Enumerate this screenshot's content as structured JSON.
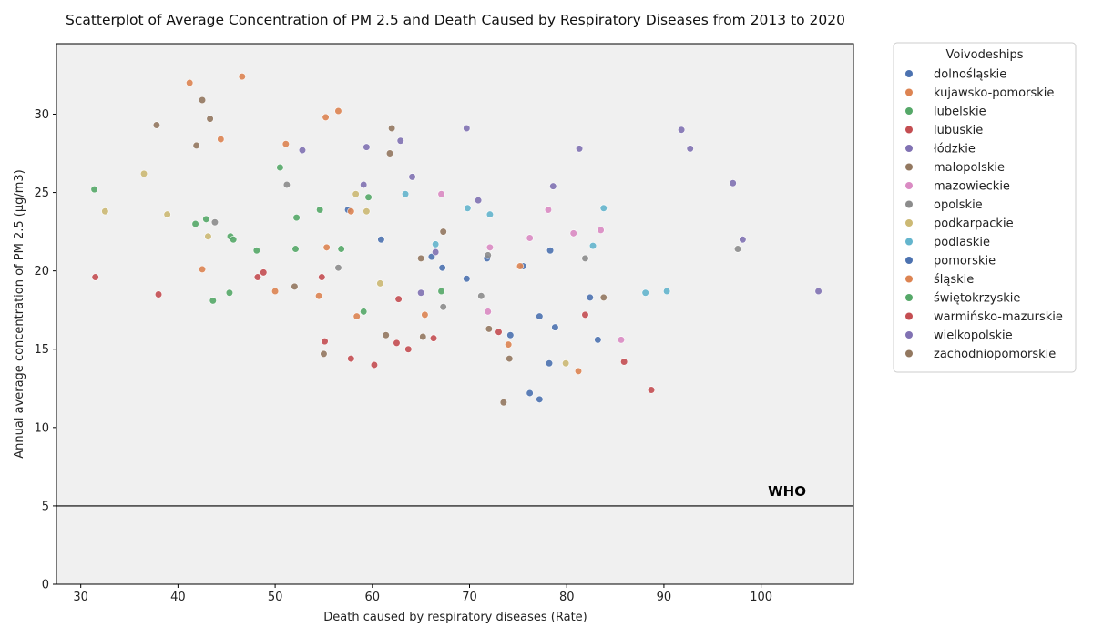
{
  "chart_data": {
    "type": "scatter",
    "title": "Scatterplot of Average Concentration of PM 2.5 and Death Caused by Respiratory Diseases from 2013 to 2020",
    "xlabel": "Death caused by respiratory diseases (Rate)",
    "ylabel": "Annual average concentration of PM 2.5 (µg/m3)",
    "xlim": [
      27.5,
      109.5
    ],
    "ylim": [
      0,
      34.5
    ],
    "xticks": [
      30,
      40,
      50,
      60,
      70,
      80,
      90,
      100
    ],
    "yticks": [
      0,
      5,
      10,
      15,
      20,
      25,
      30
    ],
    "grid": false,
    "background": "#f0f0f0",
    "legend": {
      "title": "Voivodeships",
      "placement": "outside-right"
    },
    "reference_line": {
      "y": 5,
      "label": "WHO",
      "color": "#000000"
    },
    "series": [
      {
        "name": "dolnośląskie",
        "color": "#4c72b0",
        "points": [
          [
            60.9,
            22.0
          ],
          [
            66.1,
            20.9
          ],
          [
            67.2,
            20.2
          ],
          [
            69.7,
            19.5
          ],
          [
            71.8,
            20.8
          ],
          [
            74.2,
            15.9
          ],
          [
            76.2,
            12.2
          ],
          [
            77.2,
            11.8
          ]
        ]
      },
      {
        "name": "kujawsko-pomorskie",
        "color": "#dd8452",
        "points": [
          [
            41.2,
            32.0
          ],
          [
            46.6,
            32.4
          ],
          [
            44.4,
            28.4
          ],
          [
            51.1,
            28.1
          ],
          [
            55.2,
            29.8
          ],
          [
            56.5,
            30.2
          ],
          [
            42.5,
            20.1
          ],
          [
            50.0,
            18.7
          ]
        ]
      },
      {
        "name": "lubelskie",
        "color": "#55a868",
        "points": [
          [
            31.4,
            25.2
          ],
          [
            41.8,
            23.0
          ],
          [
            42.9,
            23.3
          ],
          [
            45.4,
            22.2
          ],
          [
            45.7,
            22.0
          ],
          [
            48.1,
            21.3
          ],
          [
            43.6,
            18.1
          ],
          [
            45.3,
            18.6
          ]
        ]
      },
      {
        "name": "lubuskie",
        "color": "#c44e52",
        "points": [
          [
            31.5,
            19.6
          ],
          [
            38.0,
            18.5
          ],
          [
            48.2,
            19.6
          ],
          [
            48.8,
            19.9
          ],
          [
            54.8,
            19.6
          ],
          [
            55.1,
            15.5
          ],
          [
            57.8,
            14.4
          ],
          [
            60.2,
            14.0
          ]
        ]
      },
      {
        "name": "łódzkie",
        "color": "#8172b3",
        "points": [
          [
            52.8,
            27.7
          ],
          [
            59.4,
            27.9
          ],
          [
            62.9,
            28.3
          ],
          [
            64.1,
            26.0
          ],
          [
            69.7,
            29.1
          ],
          [
            81.3,
            27.8
          ],
          [
            91.8,
            29.0
          ],
          [
            92.7,
            27.8
          ]
        ]
      },
      {
        "name": "małopolskie",
        "color": "#937860",
        "points": [
          [
            37.8,
            29.3
          ],
          [
            42.5,
            30.9
          ],
          [
            43.3,
            29.7
          ],
          [
            41.9,
            28.0
          ],
          [
            62.0,
            29.1
          ],
          [
            61.8,
            27.5
          ],
          [
            67.3,
            22.5
          ],
          [
            65.0,
            20.8
          ]
        ]
      },
      {
        "name": "mazowieckie",
        "color": "#da8bc3",
        "points": [
          [
            67.1,
            24.9
          ],
          [
            72.1,
            21.5
          ],
          [
            76.2,
            22.1
          ],
          [
            78.1,
            23.9
          ],
          [
            80.7,
            22.4
          ],
          [
            83.5,
            22.6
          ],
          [
            71.9,
            17.4
          ],
          [
            85.6,
            15.6
          ]
        ]
      },
      {
        "name": "opolskie",
        "color": "#8c8c8c",
        "points": [
          [
            43.8,
            23.1
          ],
          [
            51.2,
            25.5
          ],
          [
            56.5,
            20.2
          ],
          [
            71.2,
            18.4
          ],
          [
            71.9,
            21.0
          ],
          [
            81.9,
            20.8
          ],
          [
            97.6,
            21.4
          ],
          [
            67.3,
            17.7
          ]
        ]
      },
      {
        "name": "podkarpackie",
        "color": "#ccb974",
        "points": [
          [
            32.5,
            23.8
          ],
          [
            36.5,
            26.2
          ],
          [
            38.9,
            23.6
          ],
          [
            43.1,
            22.2
          ],
          [
            58.3,
            24.9
          ],
          [
            59.4,
            23.8
          ],
          [
            60.8,
            19.2
          ],
          [
            79.9,
            14.1
          ]
        ]
      },
      {
        "name": "podlaskie",
        "color": "#64b5cd",
        "points": [
          [
            63.4,
            24.9
          ],
          [
            66.5,
            21.7
          ],
          [
            69.8,
            24.0
          ],
          [
            72.1,
            23.6
          ],
          [
            82.7,
            21.6
          ],
          [
            83.8,
            24.0
          ],
          [
            88.1,
            18.6
          ],
          [
            90.3,
            18.7
          ]
        ]
      },
      {
        "name": "pomorskie",
        "color": "#4c72b0",
        "points": [
          [
            57.5,
            23.9
          ],
          [
            75.5,
            20.3
          ],
          [
            78.3,
            21.3
          ],
          [
            78.8,
            16.4
          ],
          [
            82.4,
            18.3
          ],
          [
            77.2,
            17.1
          ],
          [
            83.2,
            15.6
          ],
          [
            78.2,
            14.1
          ]
        ]
      },
      {
        "name": "śląskie",
        "color": "#dd8452",
        "points": [
          [
            55.3,
            21.5
          ],
          [
            57.8,
            23.8
          ],
          [
            54.5,
            18.4
          ],
          [
            58.4,
            17.1
          ],
          [
            65.4,
            17.2
          ],
          [
            74.0,
            15.3
          ],
          [
            75.2,
            20.3
          ],
          [
            81.2,
            13.6
          ]
        ]
      },
      {
        "name": "świętokrzyskie",
        "color": "#55a868",
        "points": [
          [
            50.5,
            26.6
          ],
          [
            52.2,
            23.4
          ],
          [
            54.6,
            23.9
          ],
          [
            59.6,
            24.7
          ],
          [
            52.1,
            21.4
          ],
          [
            56.8,
            21.4
          ],
          [
            59.1,
            17.4
          ],
          [
            67.1,
            18.7
          ]
        ]
      },
      {
        "name": "warmińsko-mazurskie",
        "color": "#c44e52",
        "points": [
          [
            62.7,
            18.2
          ],
          [
            62.5,
            15.4
          ],
          [
            63.7,
            15.0
          ],
          [
            66.3,
            15.7
          ],
          [
            73.0,
            16.1
          ],
          [
            81.9,
            17.2
          ],
          [
            85.9,
            14.2
          ],
          [
            88.7,
            12.4
          ]
        ]
      },
      {
        "name": "wielkopolskie",
        "color": "#8172b3",
        "points": [
          [
            59.1,
            25.5
          ],
          [
            65.0,
            18.6
          ],
          [
            66.5,
            21.2
          ],
          [
            70.9,
            24.5
          ],
          [
            78.6,
            25.4
          ],
          [
            97.1,
            25.6
          ],
          [
            98.1,
            22.0
          ],
          [
            105.9,
            18.7
          ]
        ]
      },
      {
        "name": "zachodniopomorskie",
        "color": "#937860",
        "points": [
          [
            52.0,
            19.0
          ],
          [
            55.0,
            14.7
          ],
          [
            61.4,
            15.9
          ],
          [
            65.2,
            15.8
          ],
          [
            72.0,
            16.3
          ],
          [
            74.1,
            14.4
          ],
          [
            73.5,
            11.6
          ],
          [
            83.8,
            18.3
          ]
        ]
      }
    ]
  }
}
